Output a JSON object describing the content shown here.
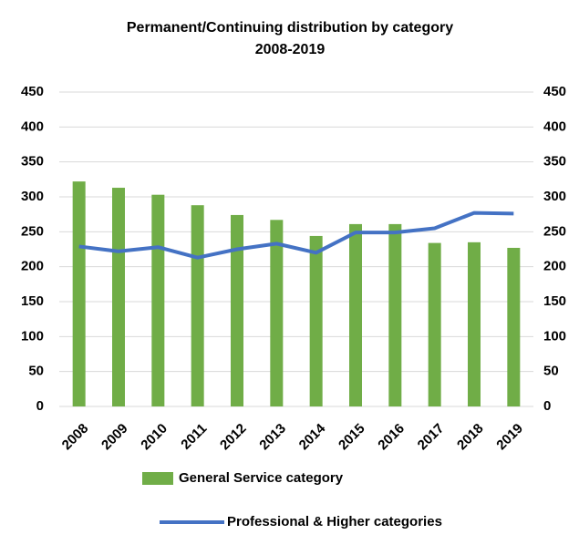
{
  "chart_data": {
    "type": "bar",
    "title": "Permanent/Continuing distribution by category",
    "subtitle": "2008-2019",
    "categories": [
      "2008",
      "2009",
      "2010",
      "2011",
      "2012",
      "2013",
      "2014",
      "2015",
      "2016",
      "2017",
      "2018",
      "2019"
    ],
    "series": [
      {
        "name": "General Service category",
        "type": "bar",
        "color": "#70ad47",
        "axis": "y",
        "values": [
          322,
          313,
          303,
          288,
          274,
          267,
          244,
          261,
          261,
          234,
          235,
          227
        ]
      },
      {
        "name": "Professional & Higher categories",
        "type": "line",
        "color": "#4472c4",
        "axis": "y2",
        "values": [
          229,
          222,
          228,
          213,
          225,
          233,
          220,
          249,
          249,
          255,
          277,
          276
        ]
      }
    ],
    "ylim": [
      0,
      450
    ],
    "yticks": [
      0,
      50,
      100,
      150,
      200,
      250,
      300,
      350,
      400,
      450
    ],
    "y2lim": [
      0,
      450
    ],
    "y2ticks": [
      0,
      50,
      100,
      150,
      200,
      250,
      300,
      350,
      400,
      450
    ],
    "grid": true,
    "legend": "bottom"
  }
}
